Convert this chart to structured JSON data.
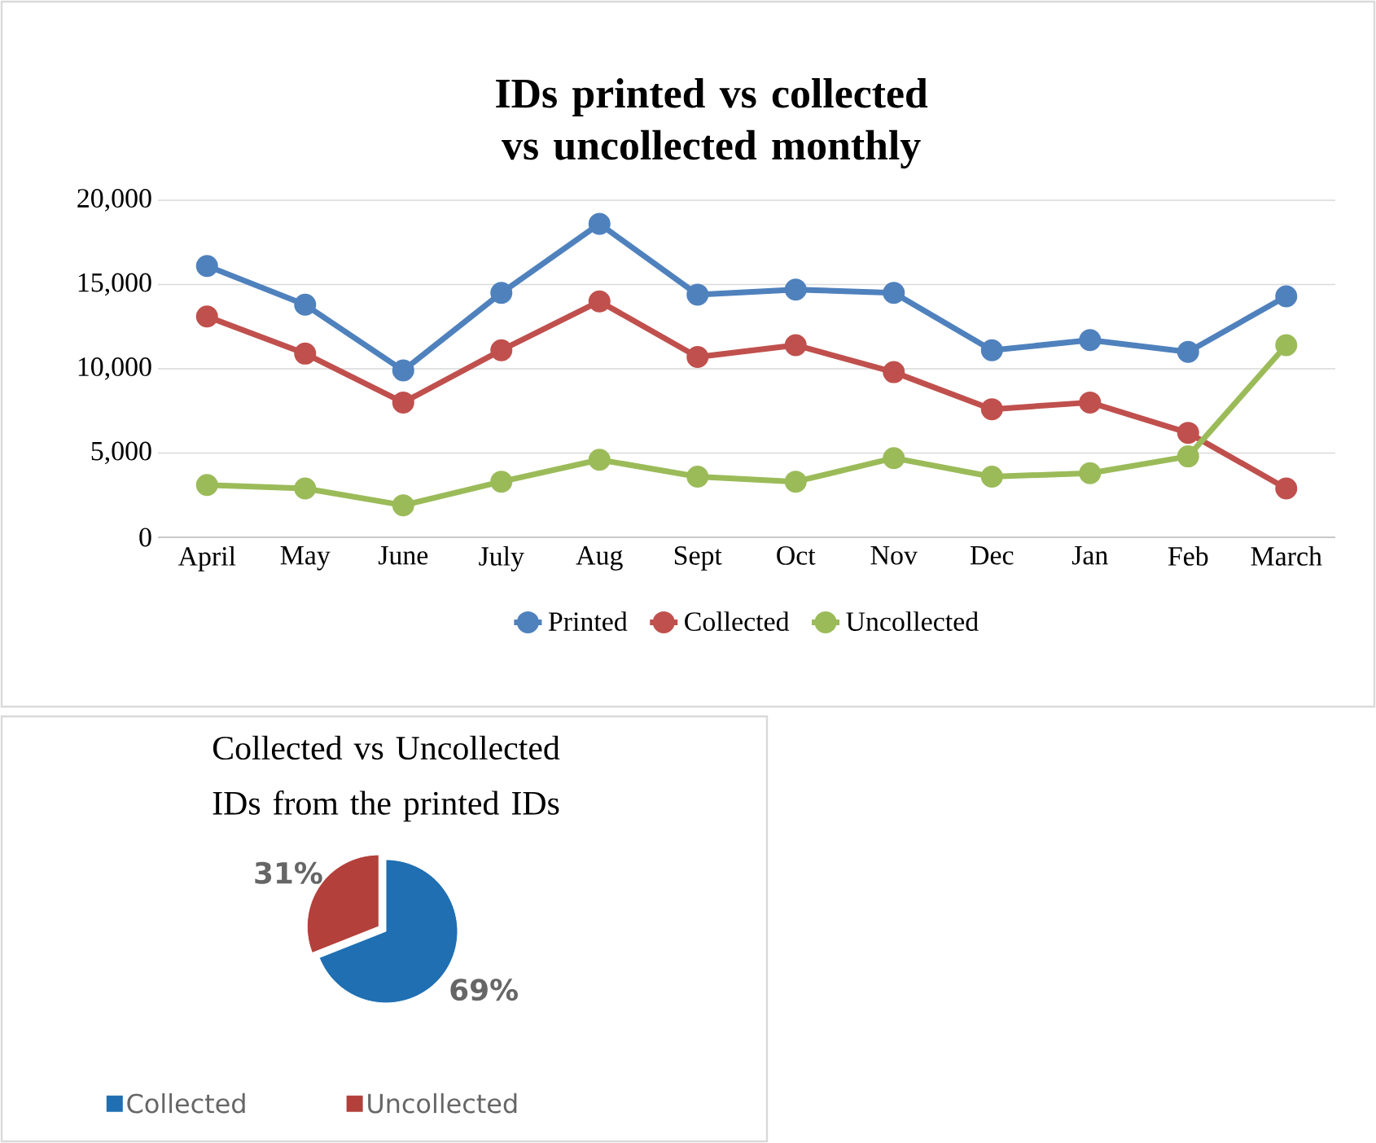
{
  "chart_data": [
    {
      "type": "line",
      "title": "IDs printed vs collected vs uncollected monthly",
      "categories": [
        "April",
        "May",
        "June",
        "July",
        "Aug",
        "Sept",
        "Oct",
        "Nov",
        "Dec",
        "Jan",
        "Feb",
        "March"
      ],
      "series": [
        {
          "name": "Printed",
          "color": "#4f81bd",
          "values": [
            16100,
            13800,
            9900,
            14500,
            18600,
            14400,
            14700,
            14500,
            11100,
            11700,
            11000,
            14300
          ]
        },
        {
          "name": "Collected",
          "color": "#c0504d",
          "values": [
            13100,
            10900,
            8000,
            11100,
            14000,
            10700,
            11400,
            9800,
            7600,
            8000,
            6200,
            2900
          ]
        },
        {
          "name": "Uncollected",
          "color": "#9bbb59",
          "values": [
            3100,
            2900,
            1900,
            3300,
            4600,
            3600,
            3300,
            4700,
            3600,
            3800,
            4800,
            11400
          ]
        }
      ],
      "ylim": [
        0,
        20000
      ],
      "yticks": [
        {
          "value": 0,
          "label": "0"
        },
        {
          "value": 5000,
          "label": "5,000"
        },
        {
          "value": 10000,
          "label": "10,000"
        },
        {
          "value": 15000,
          "label": "15,000"
        },
        {
          "value": 20000,
          "label": "20,000"
        }
      ],
      "grid": "y",
      "legend": "bottom",
      "marker": "circle",
      "line_style": "solid"
    },
    {
      "type": "pie",
      "title": "Collected vs Uncollected IDs from the printed IDs",
      "categories": [
        "Collected",
        "Uncollected"
      ],
      "values": [
        69,
        31
      ],
      "colors": [
        "#1f6fb2",
        "#b3403b"
      ],
      "value_labels": [
        "69%",
        "31%"
      ],
      "legend": "bottom"
    }
  ]
}
